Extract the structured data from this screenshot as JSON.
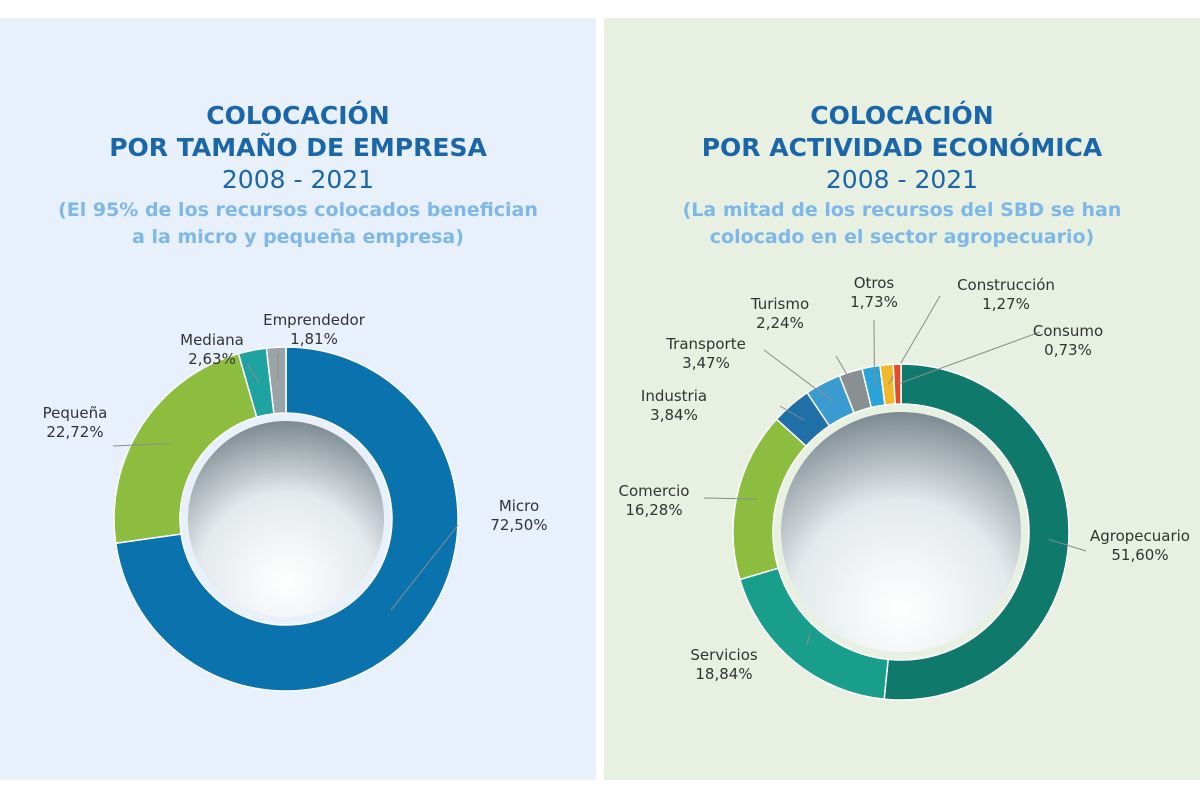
{
  "left": {
    "title_line1": "COLOCACIÓN",
    "title_line2": "POR TAMAÑO DE EMPRESA",
    "years": "2008 - 2021",
    "subtitle_line1": "(El 95% de los recursos colocados benefician",
    "subtitle_line2": "a la micro y pequeña empresa)"
  },
  "right": {
    "title_line1": "COLOCACIÓN",
    "title_line2": "POR ACTIVIDAD ECONÓMICA",
    "years": "2008 - 2021",
    "subtitle_line1": "(La mitad de los recursos del SBD se han",
    "subtitle_line2": "colocado en el sector agropecuario)"
  },
  "chart_data": [
    {
      "type": "pie",
      "title": "COLOCACIÓN POR TAMAÑO DE EMPRESA 2008 - 2021",
      "categories": [
        "Micro",
        "Pequeña",
        "Mediana",
        "Emprendedor"
      ],
      "values": [
        72.5,
        22.72,
        2.63,
        1.81
      ],
      "value_labels": [
        "72,50%",
        "22,72%",
        "2,63%",
        "1,81%"
      ],
      "colors": [
        "#0a73ae",
        "#8dbd3f",
        "#1fa3a0",
        "#9aa3a6"
      ],
      "donut": true
    },
    {
      "type": "pie",
      "title": "COLOCACIÓN POR ACTIVIDAD ECONÓMICA 2008 - 2021",
      "categories": [
        "Agropecuario",
        "Servicios",
        "Comercio",
        "Industria",
        "Transporte",
        "Turismo",
        "Otros",
        "Construcción",
        "Consumo"
      ],
      "values": [
        51.6,
        18.84,
        16.28,
        3.84,
        3.47,
        2.24,
        1.73,
        1.27,
        0.73
      ],
      "value_labels": [
        "51,60%",
        "18,84%",
        "16,28%",
        "3,84%",
        "3,47%",
        "2,24%",
        "1,73%",
        "1,27%",
        "0,73%"
      ],
      "colors": [
        "#0f7a6c",
        "#1a9e8c",
        "#8dbd3f",
        "#1f6fa8",
        "#3a9bd1",
        "#8a8f92",
        "#2aa3d8",
        "#f0b82a",
        "#e24a28"
      ],
      "donut": true
    }
  ]
}
